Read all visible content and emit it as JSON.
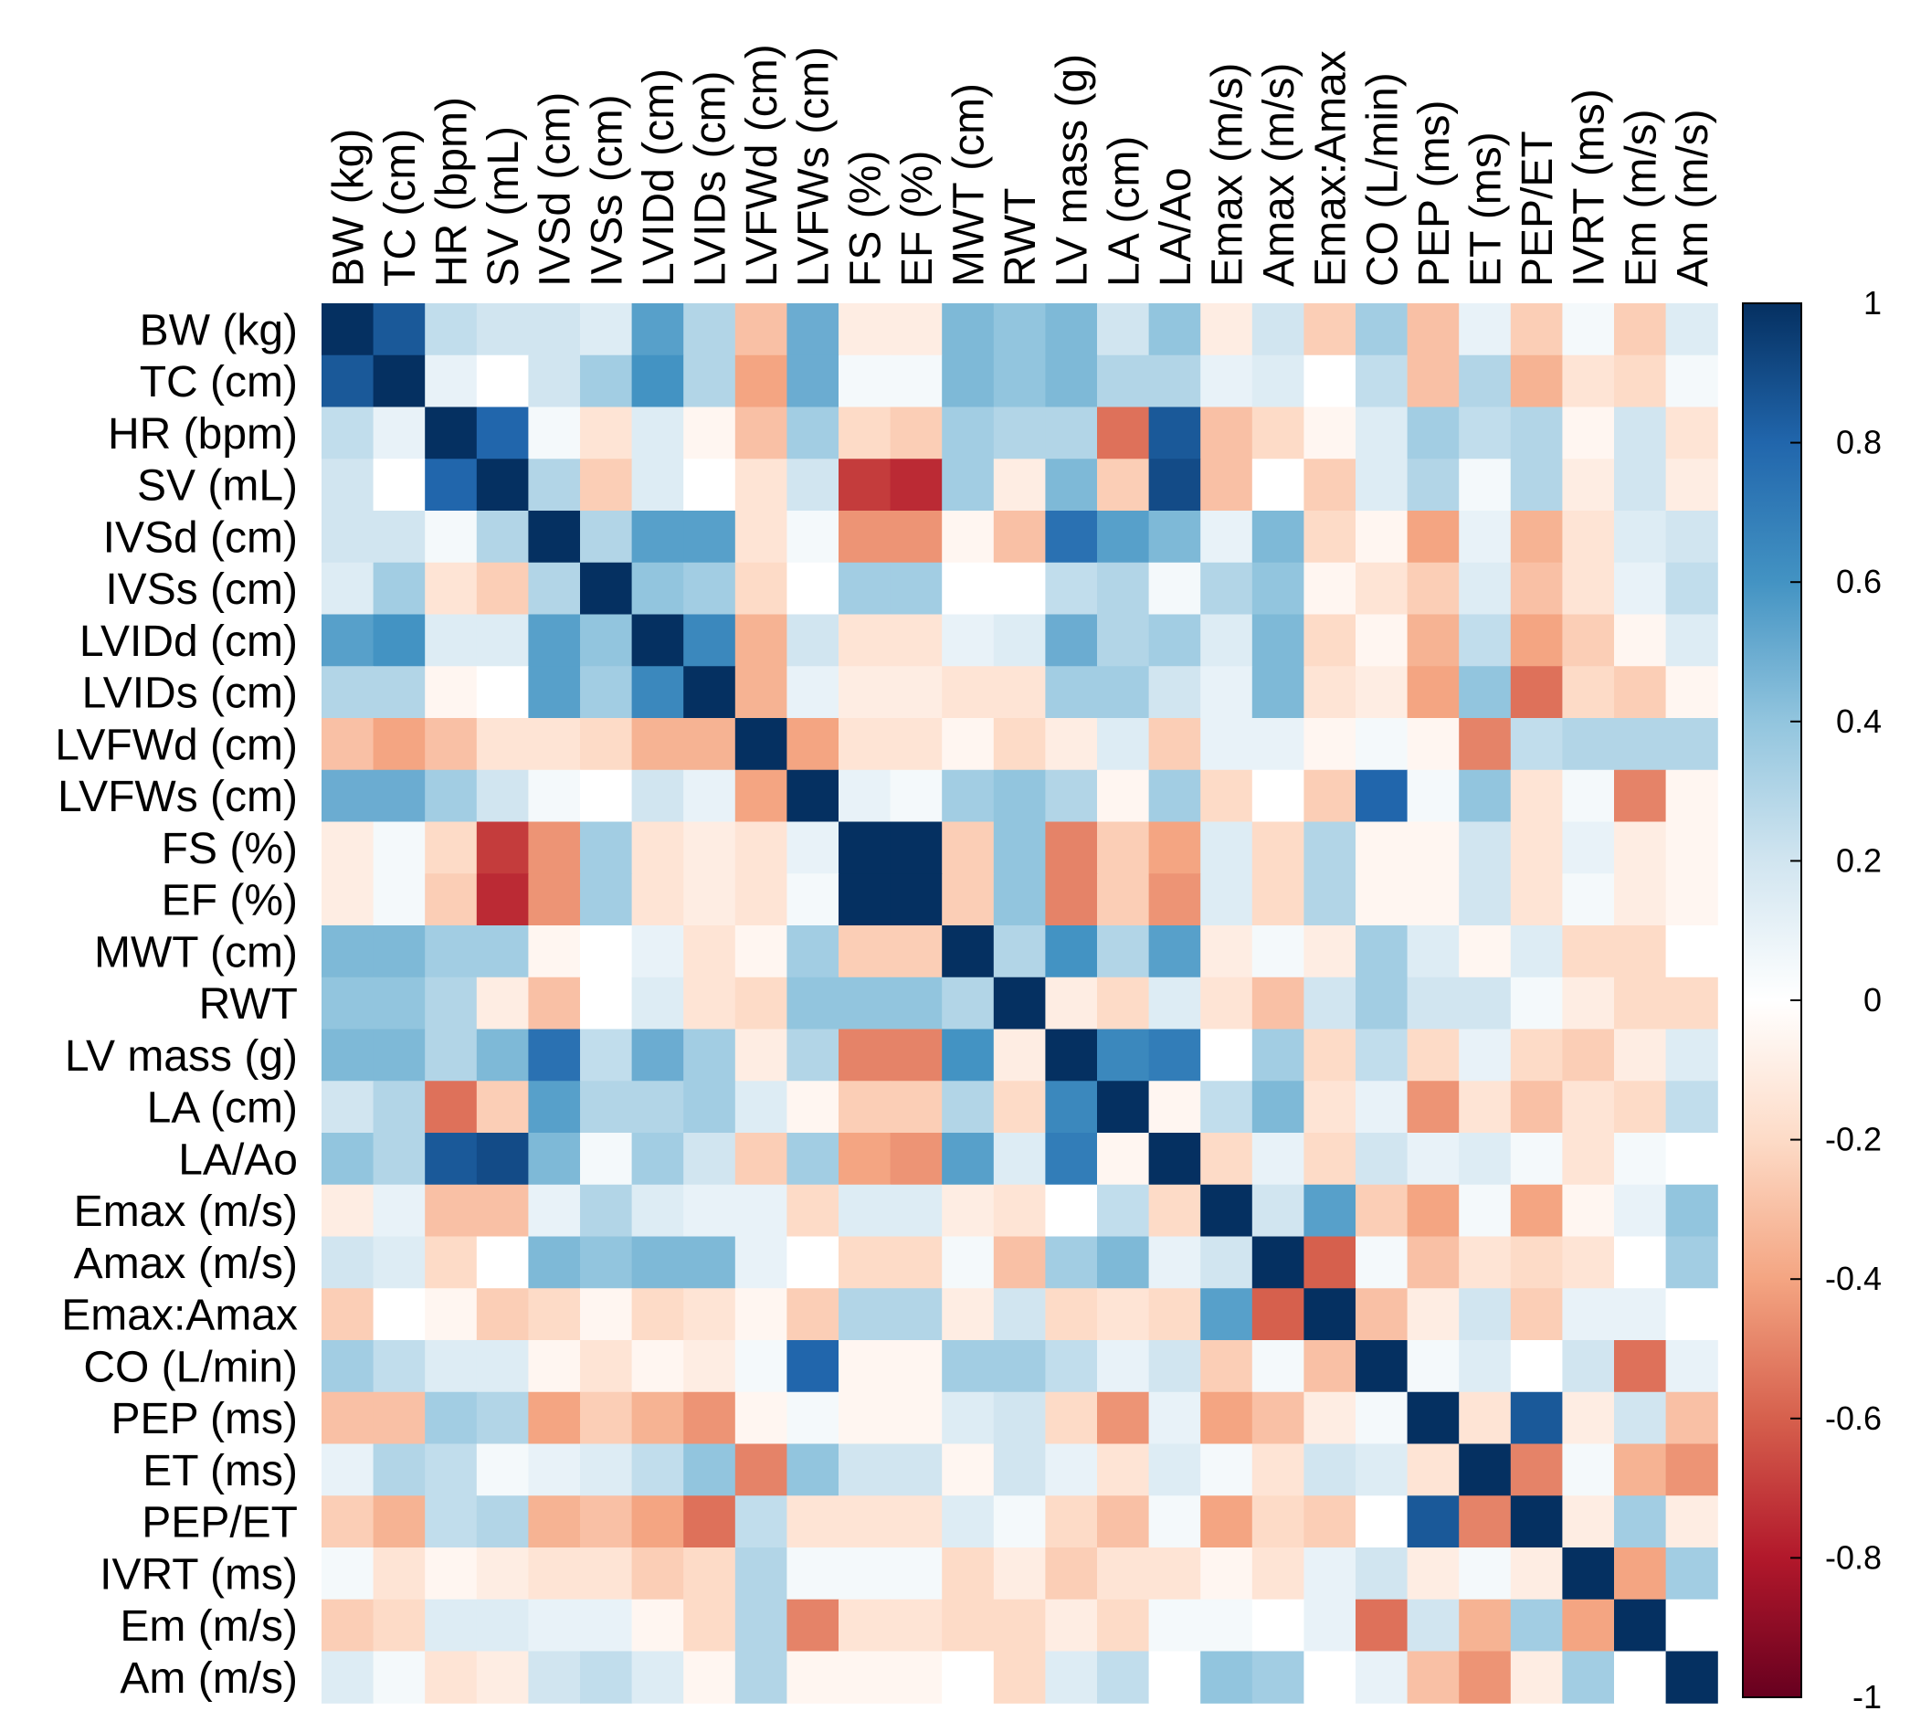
{
  "chart_data": {
    "type": "heatmap",
    "title": "",
    "variables": [
      "BW (kg)",
      "TC (cm)",
      "HR (bpm)",
      "SV (mL)",
      "IVSd (cm)",
      "IVSs (cm)",
      "LVIDd (cm)",
      "LVIDs (cm)",
      "LVFWd (cm)",
      "LVFWs (cm)",
      "FS (%)",
      "EF (%)",
      "MWT (cm)",
      "RWT",
      "LV mass (g)",
      "LA (cm)",
      "LA/Ao",
      "Emax (m/s)",
      "Amax (m/s)",
      "Emax:Amax",
      "CO (L/min)",
      "PEP (ms)",
      "ET (ms)",
      "PEP/ET",
      "IVRT (ms)",
      "Em (m/s)",
      "Am (m/s)"
    ],
    "matrix": [
      [
        1.0,
        0.85,
        0.25,
        0.2,
        0.2,
        0.15,
        0.55,
        0.3,
        -0.3,
        0.5,
        -0.1,
        -0.1,
        0.45,
        0.4,
        0.45,
        0.2,
        0.4,
        -0.1,
        0.2,
        -0.25,
        0.35,
        -0.3,
        0.1,
        -0.25,
        0.05,
        -0.25,
        0.15
      ],
      [
        0.85,
        1.0,
        0.1,
        0.0,
        0.2,
        0.35,
        0.6,
        0.3,
        -0.4,
        0.5,
        0.05,
        0.05,
        0.45,
        0.4,
        0.45,
        0.3,
        0.3,
        0.1,
        0.15,
        0.0,
        0.25,
        -0.3,
        0.3,
        -0.35,
        -0.15,
        -0.2,
        0.05
      ],
      [
        0.25,
        0.1,
        1.0,
        0.8,
        0.05,
        -0.15,
        0.15,
        -0.05,
        -0.3,
        0.35,
        -0.2,
        -0.25,
        0.35,
        0.3,
        0.3,
        -0.55,
        0.85,
        -0.3,
        -0.2,
        -0.05,
        0.15,
        0.35,
        0.25,
        0.3,
        -0.05,
        0.2,
        -0.15
      ],
      [
        0.2,
        0.0,
        0.8,
        1.0,
        0.3,
        -0.25,
        0.15,
        0.0,
        -0.15,
        0.2,
        -0.7,
        -0.75,
        0.35,
        -0.1,
        0.45,
        -0.25,
        0.9,
        -0.3,
        0.0,
        -0.25,
        0.15,
        0.3,
        0.05,
        0.3,
        -0.1,
        0.2,
        -0.1
      ],
      [
        0.2,
        0.2,
        0.05,
        0.3,
        1.0,
        0.3,
        0.55,
        0.55,
        -0.15,
        0.05,
        -0.45,
        -0.45,
        -0.05,
        -0.3,
        0.75,
        0.55,
        0.45,
        0.1,
        0.45,
        -0.2,
        -0.05,
        -0.4,
        0.1,
        -0.35,
        -0.15,
        0.15,
        0.2
      ],
      [
        0.15,
        0.35,
        -0.15,
        -0.25,
        0.3,
        1.0,
        0.4,
        0.35,
        -0.2,
        0.0,
        0.35,
        0.35,
        0.0,
        0.0,
        0.25,
        0.3,
        0.05,
        0.3,
        0.4,
        -0.05,
        -0.15,
        -0.25,
        0.15,
        -0.3,
        -0.15,
        0.1,
        0.25
      ],
      [
        0.55,
        0.6,
        0.15,
        0.15,
        0.55,
        0.4,
        1.0,
        0.65,
        -0.35,
        0.2,
        -0.15,
        -0.15,
        0.1,
        0.15,
        0.5,
        0.3,
        0.35,
        0.15,
        0.45,
        -0.2,
        -0.05,
        -0.35,
        0.25,
        -0.4,
        -0.25,
        -0.05,
        0.15
      ],
      [
        0.3,
        0.3,
        -0.05,
        0.0,
        0.55,
        0.35,
        0.65,
        1.0,
        -0.35,
        0.1,
        -0.1,
        -0.1,
        -0.15,
        -0.15,
        0.35,
        0.35,
        0.2,
        0.1,
        0.45,
        -0.15,
        -0.1,
        -0.4,
        0.4,
        -0.55,
        -0.2,
        -0.25,
        -0.05
      ],
      [
        -0.3,
        -0.4,
        -0.3,
        -0.15,
        -0.15,
        -0.2,
        -0.35,
        -0.35,
        1.0,
        -0.4,
        -0.15,
        -0.15,
        -0.05,
        -0.2,
        -0.1,
        0.15,
        -0.25,
        0.1,
        0.1,
        -0.05,
        0.05,
        -0.05,
        -0.5,
        0.25,
        0.3,
        0.3,
        0.3
      ],
      [
        0.5,
        0.5,
        0.35,
        0.2,
        0.05,
        0.0,
        0.2,
        0.1,
        -0.4,
        1.0,
        0.1,
        0.05,
        0.35,
        0.4,
        0.3,
        -0.05,
        0.35,
        -0.2,
        0.0,
        -0.25,
        0.8,
        0.05,
        0.4,
        -0.15,
        0.05,
        -0.5,
        -0.05
      ],
      [
        -0.1,
        0.05,
        -0.2,
        -0.7,
        -0.45,
        0.35,
        -0.15,
        -0.1,
        -0.15,
        0.1,
        1.0,
        1.0,
        -0.25,
        0.4,
        -0.5,
        -0.25,
        -0.4,
        0.15,
        -0.2,
        0.3,
        -0.05,
        -0.05,
        0.2,
        -0.15,
        0.1,
        -0.1,
        -0.05
      ],
      [
        -0.1,
        0.05,
        -0.25,
        -0.75,
        -0.45,
        0.35,
        -0.15,
        -0.1,
        -0.15,
        0.05,
        1.0,
        1.0,
        -0.25,
        0.4,
        -0.5,
        -0.25,
        -0.45,
        0.15,
        -0.2,
        0.3,
        -0.05,
        -0.05,
        0.2,
        -0.15,
        0.05,
        -0.1,
        -0.05
      ],
      [
        0.45,
        0.45,
        0.35,
        0.35,
        -0.05,
        0.0,
        0.1,
        -0.15,
        -0.05,
        0.35,
        -0.25,
        -0.25,
        1.0,
        0.3,
        0.6,
        0.3,
        0.55,
        -0.1,
        0.05,
        -0.1,
        0.35,
        0.15,
        -0.05,
        0.15,
        -0.2,
        -0.2,
        0.0
      ],
      [
        0.4,
        0.4,
        0.3,
        -0.1,
        -0.3,
        0.0,
        0.15,
        -0.15,
        -0.2,
        0.4,
        0.4,
        0.4,
        0.3,
        1.0,
        -0.1,
        -0.2,
        0.15,
        -0.15,
        -0.3,
        0.2,
        0.35,
        0.2,
        0.2,
        0.05,
        -0.1,
        -0.2,
        -0.2
      ],
      [
        0.45,
        0.45,
        0.3,
        0.45,
        0.75,
        0.25,
        0.5,
        0.35,
        -0.1,
        0.3,
        -0.5,
        -0.5,
        0.6,
        -0.1,
        1.0,
        0.65,
        0.7,
        0.0,
        0.35,
        -0.2,
        0.25,
        -0.2,
        0.1,
        -0.2,
        -0.25,
        -0.1,
        0.15
      ],
      [
        0.2,
        0.3,
        -0.55,
        -0.25,
        0.55,
        0.3,
        0.3,
        0.35,
        0.15,
        -0.05,
        -0.25,
        -0.25,
        0.3,
        -0.2,
        0.65,
        1.0,
        -0.05,
        0.25,
        0.45,
        -0.15,
        0.1,
        -0.45,
        -0.15,
        -0.3,
        -0.15,
        -0.2,
        0.25
      ],
      [
        0.4,
        0.3,
        0.85,
        0.9,
        0.45,
        0.05,
        0.35,
        0.2,
        -0.25,
        0.35,
        -0.4,
        -0.45,
        0.55,
        0.15,
        0.7,
        -0.05,
        1.0,
        -0.2,
        0.1,
        -0.2,
        0.2,
        0.1,
        0.15,
        0.05,
        -0.15,
        0.05,
        0.0
      ],
      [
        -0.1,
        0.1,
        -0.3,
        -0.3,
        0.1,
        0.3,
        0.15,
        0.1,
        0.1,
        -0.2,
        0.15,
        0.15,
        -0.1,
        -0.15,
        0.0,
        0.25,
        -0.2,
        1.0,
        0.2,
        0.55,
        -0.25,
        -0.4,
        0.05,
        -0.4,
        -0.05,
        0.1,
        0.4
      ],
      [
        0.2,
        0.15,
        -0.2,
        0.0,
        0.45,
        0.4,
        0.45,
        0.45,
        0.1,
        0.0,
        -0.2,
        -0.2,
        0.05,
        -0.3,
        0.35,
        0.45,
        0.1,
        0.2,
        1.0,
        -0.6,
        0.05,
        -0.3,
        -0.15,
        -0.2,
        -0.15,
        0.0,
        0.35
      ],
      [
        -0.25,
        0.0,
        -0.05,
        -0.25,
        -0.2,
        -0.05,
        -0.2,
        -0.15,
        -0.05,
        -0.25,
        0.3,
        0.3,
        -0.1,
        0.2,
        -0.2,
        -0.15,
        -0.2,
        0.55,
        -0.6,
        1.0,
        -0.3,
        -0.1,
        0.2,
        -0.25,
        0.1,
        0.1,
        0.0
      ],
      [
        0.35,
        0.25,
        0.15,
        0.15,
        -0.05,
        -0.15,
        -0.05,
        -0.1,
        0.05,
        0.8,
        -0.05,
        -0.05,
        0.35,
        0.35,
        0.25,
        0.1,
        0.2,
        -0.25,
        0.05,
        -0.3,
        1.0,
        0.05,
        0.15,
        0.0,
        0.2,
        -0.55,
        0.1
      ],
      [
        -0.3,
        -0.3,
        0.35,
        0.3,
        -0.4,
        -0.25,
        -0.35,
        -0.45,
        -0.05,
        0.05,
        -0.05,
        -0.05,
        0.15,
        0.2,
        -0.2,
        -0.45,
        0.1,
        -0.4,
        -0.3,
        -0.1,
        0.05,
        1.0,
        -0.15,
        0.85,
        -0.1,
        0.2,
        -0.3
      ],
      [
        0.1,
        0.3,
        0.25,
        0.05,
        0.1,
        0.15,
        0.25,
        0.4,
        -0.5,
        0.4,
        0.2,
        0.2,
        -0.05,
        0.2,
        0.1,
        -0.15,
        0.15,
        0.05,
        -0.15,
        0.2,
        0.15,
        -0.15,
        1.0,
        -0.5,
        0.05,
        -0.35,
        -0.45
      ],
      [
        -0.25,
        -0.35,
        0.25,
        0.3,
        -0.35,
        -0.3,
        -0.4,
        -0.55,
        0.25,
        -0.15,
        -0.15,
        -0.15,
        0.15,
        0.05,
        -0.2,
        -0.3,
        0.05,
        -0.4,
        -0.2,
        -0.25,
        0.0,
        0.85,
        -0.5,
        1.0,
        -0.1,
        0.35,
        -0.1
      ],
      [
        0.05,
        -0.15,
        -0.05,
        -0.1,
        -0.15,
        -0.15,
        -0.25,
        -0.2,
        0.3,
        0.05,
        0.05,
        0.05,
        -0.2,
        -0.1,
        -0.25,
        -0.15,
        -0.15,
        -0.05,
        -0.15,
        0.1,
        0.2,
        -0.1,
        0.05,
        -0.1,
        1.0,
        -0.4,
        0.35
      ],
      [
        -0.25,
        -0.2,
        0.15,
        0.15,
        0.1,
        0.1,
        -0.05,
        -0.2,
        0.3,
        -0.5,
        -0.15,
        -0.15,
        -0.2,
        -0.2,
        -0.1,
        -0.2,
        0.05,
        0.05,
        0.0,
        0.1,
        -0.55,
        0.2,
        -0.35,
        0.35,
        -0.4,
        1.0,
        0.0
      ],
      [
        0.15,
        0.05,
        -0.15,
        -0.1,
        0.2,
        0.25,
        0.15,
        -0.05,
        0.3,
        -0.05,
        -0.05,
        -0.05,
        0.0,
        -0.2,
        0.15,
        0.25,
        0.0,
        0.4,
        0.35,
        0.0,
        0.1,
        -0.3,
        -0.45,
        -0.1,
        0.35,
        0.0,
        1.0
      ]
    ],
    "colorbar": {
      "range": [
        -1,
        1
      ],
      "tick_values": [
        1,
        0.8,
        0.6,
        0.4,
        0.2,
        0,
        -0.2,
        -0.4,
        -0.6,
        -0.8,
        -1
      ],
      "tick_labels": [
        "1",
        "0.8",
        "0.6",
        "0.4",
        "0.2",
        "0",
        "-0.2",
        "-0.4",
        "-0.6",
        "-0.8",
        "-1"
      ],
      "colors": [
        "#67001f",
        "#b2182b",
        "#d6604d",
        "#f4a582",
        "#fddbc7",
        "#ffffff",
        "#d1e5f0",
        "#92c5de",
        "#4393c3",
        "#2166ac",
        "#053061"
      ]
    },
    "legend": "right"
  }
}
